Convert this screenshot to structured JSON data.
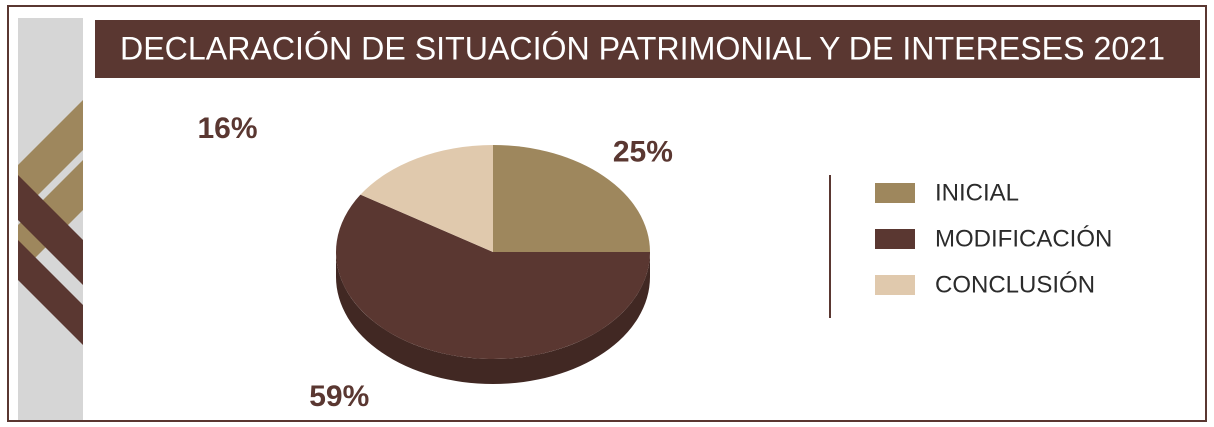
{
  "chart_data": {
    "type": "pie",
    "title": "DECLARACIÓN DE SITUACIÓN PATRIMONIAL Y DE INTERESES 2021",
    "categories": [
      "INICIAL",
      "MODIFICACIÓN",
      "CONCLUSIÓN"
    ],
    "values": [
      25,
      59,
      16
    ],
    "value_labels": [
      "25%",
      "59%",
      "16%"
    ],
    "colors": [
      "#9e875d",
      "#5a3731",
      "#e0c9ad"
    ],
    "legend": "right"
  }
}
